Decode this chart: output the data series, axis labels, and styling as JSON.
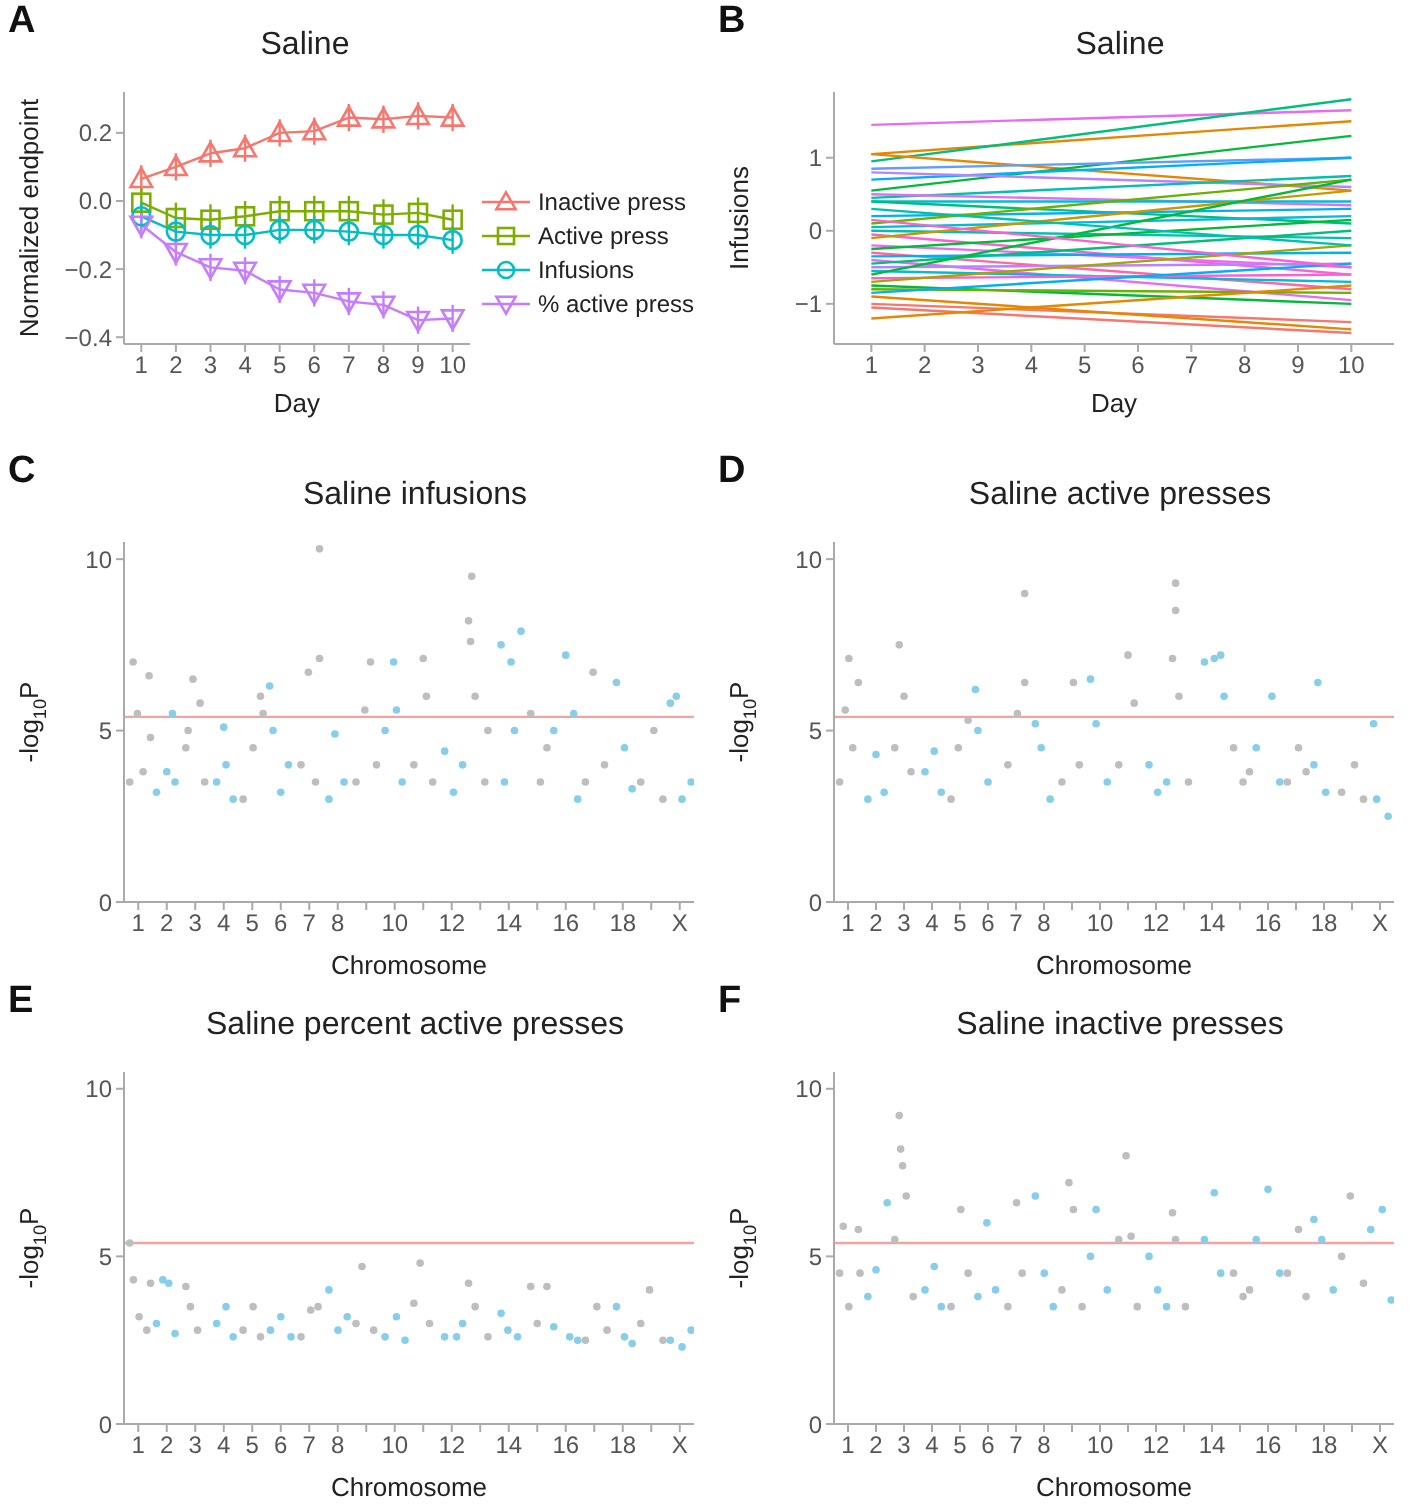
{
  "chart_data": [
    {
      "type": "line",
      "title": "Saline",
      "xlabel": "Day",
      "ylabel": "Normalized endpoint",
      "annotations": [
        "A"
      ],
      "legend": "right",
      "x": [
        1,
        2,
        3,
        4,
        5,
        6,
        7,
        8,
        9,
        10
      ],
      "xlim": [
        0.5,
        10.5
      ],
      "xticks": [
        1,
        2,
        3,
        4,
        5,
        6,
        7,
        8,
        9,
        10
      ],
      "ylim": [
        -0.42,
        0.32
      ],
      "yticks": [
        {
          "value": -0.4,
          "label": "−0.4"
        },
        {
          "value": -0.2,
          "label": "−0.2"
        },
        {
          "value": 0,
          "label": "0.0"
        },
        {
          "value": 0.2,
          "label": "0.2"
        }
      ],
      "series": [
        {
          "name": "Inactive press",
          "color": "#f8766d",
          "marker": "triangle",
          "values": [
            0.065,
            0.1,
            0.14,
            0.155,
            0.2,
            0.205,
            0.245,
            0.24,
            0.25,
            0.245
          ],
          "errors": [
            0.04,
            0.04,
            0.04,
            0.04,
            0.04,
            0.04,
            0.04,
            0.04,
            0.04,
            0.04
          ]
        },
        {
          "name": "Active press",
          "color": "#7cae00",
          "marker": "square",
          "values": [
            -0.005,
            -0.05,
            -0.055,
            -0.045,
            -0.03,
            -0.03,
            -0.03,
            -0.04,
            -0.035,
            -0.055
          ],
          "errors": [
            0.045,
            0.045,
            0.045,
            0.045,
            0.045,
            0.045,
            0.045,
            0.045,
            0.045,
            0.045
          ]
        },
        {
          "name": "Infusions",
          "color": "#00bfc4",
          "marker": "circle",
          "values": [
            -0.045,
            -0.09,
            -0.1,
            -0.1,
            -0.085,
            -0.085,
            -0.09,
            -0.1,
            -0.1,
            -0.115
          ],
          "errors": [
            0.04,
            0.04,
            0.04,
            0.04,
            0.04,
            0.04,
            0.04,
            0.04,
            0.04,
            0.04
          ]
        },
        {
          "name": "% active press",
          "color": "#c77cff",
          "marker": "triangle-down",
          "values": [
            -0.07,
            -0.15,
            -0.195,
            -0.205,
            -0.26,
            -0.27,
            -0.295,
            -0.305,
            -0.35,
            -0.345
          ],
          "errors": [
            0.04,
            0.04,
            0.04,
            0.04,
            0.04,
            0.04,
            0.04,
            0.04,
            0.04,
            0.04
          ]
        }
      ]
    },
    {
      "type": "line",
      "title": "Saline",
      "xlabel": "Day",
      "ylabel": "Infusions",
      "annotations": [
        "B"
      ],
      "marker": "none",
      "xlim": [
        0.3,
        10.8
      ],
      "xticks": [
        1,
        2,
        3,
        4,
        5,
        6,
        7,
        8,
        9,
        10
      ],
      "ylim": [
        -1.55,
        1.9
      ],
      "yticks": [
        {
          "value": -1,
          "label": "−1"
        },
        0,
        1
      ],
      "series": [
        {
          "color": "#e76bf3",
          "x": [
            1,
            10
          ],
          "values": [
            1.45,
            1.65
          ]
        },
        {
          "color": "#e58700",
          "x": [
            1,
            10
          ],
          "values": [
            1.05,
            1.5
          ]
        },
        {
          "color": "#00bf7d",
          "x": [
            1,
            10
          ],
          "values": [
            0.95,
            1.8
          ]
        },
        {
          "color": "#e58700",
          "x": [
            1,
            10
          ],
          "values": [
            1.05,
            0.55
          ]
        },
        {
          "color": "#00ba38",
          "x": [
            1,
            10
          ],
          "values": [
            0.55,
            1.3
          ]
        },
        {
          "color": "#619cff",
          "x": [
            1,
            10
          ],
          "values": [
            0.85,
            1.0
          ]
        },
        {
          "color": "#00b0f6",
          "x": [
            1,
            10
          ],
          "values": [
            0.7,
            1.0
          ]
        },
        {
          "color": "#b983ff",
          "x": [
            1,
            10
          ],
          "values": [
            0.8,
            0.6
          ]
        },
        {
          "color": "#00c0af",
          "x": [
            1,
            10
          ],
          "values": [
            0.45,
            0.75
          ]
        },
        {
          "color": "#e76bf3",
          "x": [
            1,
            10
          ],
          "values": [
            0.5,
            0.35
          ]
        },
        {
          "color": "#00bcd8",
          "x": [
            1,
            10
          ],
          "values": [
            0.4,
            0.4
          ]
        },
        {
          "color": "#00bf7d",
          "x": [
            1,
            10
          ],
          "values": [
            0.4,
            0.1
          ]
        },
        {
          "color": "#00b0f6",
          "x": [
            1,
            10
          ],
          "values": [
            0.2,
            0.3
          ]
        },
        {
          "color": "#6bb100",
          "x": [
            1,
            10
          ],
          "values": [
            0.1,
            0.7
          ]
        },
        {
          "color": "#00bcd8",
          "x": [
            1,
            10
          ],
          "values": [
            0.05,
            0.2
          ]
        },
        {
          "color": "#00c0af",
          "x": [
            1,
            10
          ],
          "values": [
            0.0,
            -0.1
          ]
        },
        {
          "color": "#fd61d1",
          "x": [
            1,
            10
          ],
          "values": [
            -0.05,
            -0.6
          ]
        },
        {
          "color": "#c99800",
          "x": [
            1,
            10
          ],
          "values": [
            -0.1,
            0.55
          ]
        },
        {
          "color": "#e76bf3",
          "x": [
            1,
            10
          ],
          "values": [
            -0.2,
            -0.5
          ]
        },
        {
          "color": "#00ba38",
          "x": [
            1,
            10
          ],
          "values": [
            -0.25,
            0.15
          ]
        },
        {
          "color": "#ff67a4",
          "x": [
            1,
            10
          ],
          "values": [
            -0.3,
            -0.8
          ]
        },
        {
          "color": "#00b0f6",
          "x": [
            1,
            10
          ],
          "values": [
            -0.35,
            -0.3
          ]
        },
        {
          "color": "#e76bf3",
          "x": [
            1,
            10
          ],
          "values": [
            -0.4,
            -0.95
          ]
        },
        {
          "color": "#00bf7d",
          "x": [
            1,
            10
          ],
          "values": [
            -0.45,
            0.0
          ]
        },
        {
          "color": "#b983ff",
          "x": [
            1,
            10
          ],
          "values": [
            -0.5,
            -0.45
          ]
        },
        {
          "color": "#00bcd8",
          "x": [
            1,
            10
          ],
          "values": [
            -0.55,
            -0.7
          ]
        },
        {
          "color": "#00ba38",
          "x": [
            1,
            10
          ],
          "values": [
            -0.6,
            0.7
          ]
        },
        {
          "color": "#fd61d1",
          "x": [
            1,
            10
          ],
          "values": [
            -0.65,
            -0.6
          ]
        },
        {
          "color": "#a3a500",
          "x": [
            1,
            10
          ],
          "values": [
            -0.7,
            -0.2
          ]
        },
        {
          "color": "#00ba38",
          "x": [
            1,
            10
          ],
          "values": [
            -0.75,
            -1.0
          ]
        },
        {
          "color": "#6bb100",
          "x": [
            1,
            10
          ],
          "values": [
            -0.8,
            -0.85
          ]
        },
        {
          "color": "#00b0f6",
          "x": [
            1,
            10
          ],
          "values": [
            -0.85,
            -0.45
          ]
        },
        {
          "color": "#f8766d",
          "x": [
            1,
            10
          ],
          "values": [
            -1.0,
            -1.25
          ]
        },
        {
          "color": "#f8766d",
          "x": [
            1,
            10
          ],
          "values": [
            -1.05,
            -1.4
          ]
        },
        {
          "color": "#e58700",
          "x": [
            1,
            10
          ],
          "values": [
            -1.2,
            -0.75
          ]
        },
        {
          "color": "#e58700",
          "x": [
            1,
            10
          ],
          "values": [
            -0.9,
            -1.35
          ]
        },
        {
          "color": "#fd61d1",
          "x": [
            1,
            10
          ],
          "values": [
            0.15,
            -0.5
          ]
        },
        {
          "color": "#00c0af",
          "x": [
            1,
            10
          ],
          "values": [
            0.3,
            -0.2
          ]
        }
      ]
    },
    {
      "type": "scatter",
      "title": "Saline infusions",
      "xlabel": "Chromosome",
      "ylabel": "-log$_{10}$P",
      "annotations": [
        "C"
      ],
      "marker": "circle",
      "xlim": [
        0.5,
        20.5
      ],
      "xticks": [
        1,
        2,
        3,
        4,
        5,
        6,
        7,
        8,
        {
          "value": 9,
          "label": null
        },
        10,
        {
          "value": 11,
          "label": null
        },
        12,
        {
          "value": 13,
          "label": null
        },
        14,
        {
          "value": 15,
          "label": null
        },
        16,
        {
          "value": 17,
          "label": null
        },
        18,
        {
          "value": 19,
          "label": null
        },
        {
          "value": 20,
          "label": "X"
        }
      ],
      "ylim": [
        0,
        10.5
      ],
      "yticks": [
        0,
        5,
        10
      ],
      "ref_lines": [
        {
          "axis": "y",
          "value": 5.4,
          "color": "#f4a3a3"
        }
      ],
      "series": [
        {
          "color": "#bebebe",
          "x": [
            0.7,
            0.82,
            0.97,
            1.17,
            1.38,
            1.43,
            2.67,
            2.75,
            2.92,
            3.17,
            3.33,
            4.68,
            5.03,
            5.29,
            5.38,
            6.71,
            6.97,
            7.22,
            7.36,
            7.36,
            8.64,
            8.95,
            9.15,
            9.36,
            10.67,
            11.0,
            11.11,
            11.33,
            12.59,
            12.66,
            12.7,
            12.82,
            13.16,
            13.27,
            14.77,
            15.11,
            15.34,
            16.69,
            16.96,
            17.36,
            18.63,
            19.09,
            19.41
          ],
          "values": [
            3.5,
            7.0,
            5.5,
            3.8,
            6.6,
            4.8,
            4.5,
            5.0,
            6.5,
            5.8,
            3.5,
            3.0,
            4.5,
            6.0,
            5.5,
            4.0,
            6.7,
            3.5,
            10.3,
            7.1,
            3.5,
            5.6,
            7.0,
            4.0,
            4.0,
            7.1,
            6.0,
            3.5,
            8.2,
            7.6,
            9.5,
            6.0,
            3.5,
            5.0,
            5.5,
            3.5,
            4.5,
            3.5,
            6.7,
            4.0,
            3.5,
            5.0,
            3.0
          ]
        },
        {
          "color": "#87ceeb",
          "x": [
            1.64,
            2.0,
            2.2,
            2.29,
            3.75,
            4.0,
            4.08,
            4.33,
            5.61,
            5.73,
            6.0,
            6.27,
            7.69,
            7.9,
            8.22,
            9.66,
            9.96,
            10.06,
            10.26,
            11.75,
            12.06,
            12.38,
            13.73,
            13.85,
            14.08,
            14.2,
            14.43,
            15.58,
            16.0,
            16.28,
            16.42,
            17.78,
            18.06,
            18.33,
            19.67,
            19.88,
            20.08,
            20.4
          ],
          "values": [
            3.2,
            3.8,
            5.5,
            3.5,
            3.5,
            5.1,
            4.0,
            3.0,
            6.3,
            5.0,
            3.2,
            4.0,
            3.0,
            4.9,
            3.5,
            5.0,
            7.0,
            5.6,
            3.5,
            4.4,
            3.2,
            4.0,
            7.5,
            3.5,
            7.0,
            5.0,
            7.9,
            5.0,
            7.2,
            5.5,
            3.0,
            6.4,
            4.5,
            3.3,
            5.8,
            6.0,
            3.0,
            3.5
          ]
        }
      ]
    },
    {
      "type": "scatter",
      "title": "Saline active presses",
      "xlabel": "Chromosome",
      "ylabel": "-log$_{10}$P",
      "annotations": [
        "D"
      ],
      "marker": "circle",
      "xlim": [
        0.5,
        20.5
      ],
      "xticks": [
        1,
        2,
        3,
        4,
        5,
        6,
        7,
        8,
        {
          "value": 9,
          "label": null
        },
        10,
        {
          "value": 11,
          "label": null
        },
        12,
        {
          "value": 13,
          "label": null
        },
        14,
        {
          "value": 15,
          "label": null
        },
        16,
        {
          "value": 17,
          "label": null
        },
        18,
        {
          "value": 19,
          "label": null
        },
        {
          "value": 20,
          "label": "X"
        }
      ],
      "ylim": [
        0,
        10.5
      ],
      "yticks": [
        0,
        5,
        10
      ],
      "ref_lines": [
        {
          "axis": "y",
          "value": 5.4,
          "color": "#f4a3a3"
        }
      ],
      "series": [
        {
          "color": "#bebebe",
          "x": [
            0.7,
            0.9,
            1.03,
            1.17,
            1.37,
            2.67,
            2.83,
            3.0,
            3.25,
            4.68,
            4.94,
            5.29,
            6.71,
            7.05,
            7.31,
            7.31,
            8.64,
            9.05,
            9.26,
            10.67,
            11.0,
            11.22,
            12.59,
            12.7,
            12.7,
            12.82,
            13.16,
            14.77,
            15.11,
            15.34,
            16.69,
            17.09,
            17.36,
            18.63,
            19.09,
            19.41
          ],
          "values": [
            3.5,
            5.6,
            7.1,
            4.5,
            6.4,
            4.5,
            7.5,
            6.0,
            3.8,
            3.0,
            4.5,
            5.3,
            4.0,
            5.5,
            9.0,
            6.4,
            3.5,
            6.4,
            4.0,
            4.0,
            7.2,
            5.8,
            7.1,
            8.5,
            9.3,
            6.0,
            3.5,
            4.5,
            3.5,
            3.8,
            3.5,
            4.5,
            3.8,
            3.2,
            4.0,
            3.0
          ]
        },
        {
          "color": "#87ceeb",
          "x": [
            1.71,
            2.0,
            2.29,
            3.75,
            4.08,
            4.33,
            5.55,
            5.64,
            6.0,
            7.69,
            7.9,
            8.22,
            9.66,
            9.86,
            10.26,
            11.75,
            12.06,
            12.38,
            13.73,
            14.08,
            14.31,
            14.43,
            15.58,
            16.14,
            16.42,
            17.64,
            17.78,
            18.06,
            19.77,
            19.88,
            20.29
          ],
          "values": [
            3.0,
            4.3,
            3.2,
            3.8,
            4.4,
            3.2,
            6.2,
            5.0,
            3.5,
            5.2,
            4.5,
            3.0,
            6.5,
            5.2,
            3.5,
            4.0,
            3.2,
            3.5,
            7.0,
            7.1,
            7.2,
            6.0,
            4.5,
            6.0,
            3.5,
            4.0,
            6.4,
            3.2,
            5.2,
            3.0,
            2.5
          ]
        }
      ]
    },
    {
      "type": "scatter",
      "title": "Saline percent active presses",
      "xlabel": "Chromosome",
      "ylabel": "-log$_{10}$P",
      "annotations": [
        "E"
      ],
      "marker": "circle",
      "xlim": [
        0.5,
        20.5
      ],
      "xticks": [
        1,
        2,
        3,
        4,
        5,
        6,
        7,
        8,
        {
          "value": 9,
          "label": null
        },
        10,
        {
          "value": 11,
          "label": null
        },
        12,
        {
          "value": 13,
          "label": null
        },
        14,
        {
          "value": 15,
          "label": null
        },
        16,
        {
          "value": 17,
          "label": null
        },
        18,
        {
          "value": 19,
          "label": null
        },
        {
          "value": 20,
          "label": "X"
        }
      ],
      "ylim": [
        0,
        10.5
      ],
      "yticks": [
        0,
        5,
        10
      ],
      "ref_lines": [
        {
          "axis": "y",
          "value": 5.4,
          "color": "#f4a3a3"
        }
      ],
      "series": [
        {
          "color": "#bebebe",
          "x": [
            0.7,
            0.83,
            1.03,
            1.3,
            1.43,
            2.67,
            2.83,
            3.08,
            4.68,
            5.03,
            5.29,
            6.71,
            7.05,
            7.31,
            8.64,
            8.85,
            9.26,
            10.67,
            10.89,
            11.22,
            12.59,
            12.82,
            13.27,
            14.77,
            15.0,
            15.34,
            16.69,
            17.09,
            17.45,
            18.63,
            18.94,
            19.41
          ],
          "values": [
            5.4,
            4.3,
            3.2,
            2.8,
            4.2,
            4.1,
            3.5,
            2.8,
            2.8,
            3.5,
            2.6,
            2.6,
            3.4,
            3.5,
            3.0,
            4.7,
            2.8,
            3.6,
            4.8,
            3.0,
            4.2,
            3.5,
            2.6,
            4.1,
            3.0,
            4.1,
            2.5,
            3.5,
            2.8,
            3.0,
            4.0,
            2.5
          ]
        },
        {
          "color": "#87ceeb",
          "x": [
            1.64,
            1.86,
            2.07,
            2.29,
            3.75,
            4.08,
            4.33,
            5.64,
            6.0,
            6.36,
            7.69,
            8.01,
            8.33,
            9.66,
            10.06,
            10.36,
            11.75,
            12.17,
            12.38,
            13.73,
            13.97,
            14.31,
            15.58,
            16.14,
            16.42,
            17.78,
            18.06,
            18.33,
            19.67,
            20.08,
            20.4
          ],
          "values": [
            3.0,
            4.3,
            4.2,
            2.7,
            3.0,
            3.5,
            2.6,
            2.8,
            3.2,
            2.6,
            4.0,
            2.8,
            3.2,
            2.6,
            3.2,
            2.5,
            2.6,
            2.6,
            3.0,
            3.3,
            2.8,
            2.6,
            2.9,
            2.6,
            2.5,
            3.5,
            2.6,
            2.4,
            2.5,
            2.3,
            2.8
          ]
        }
      ]
    },
    {
      "type": "scatter",
      "title": "Saline inactive presses",
      "xlabel": "Chromosome",
      "ylabel": "-log$_{10}$P",
      "annotations": [
        "F"
      ],
      "marker": "circle",
      "xlim": [
        0.5,
        20.5
      ],
      "xticks": [
        1,
        2,
        3,
        4,
        5,
        6,
        7,
        8,
        {
          "value": 9,
          "label": null
        },
        10,
        {
          "value": 11,
          "label": null
        },
        12,
        {
          "value": 13,
          "label": null
        },
        14,
        {
          "value": 15,
          "label": null
        },
        16,
        {
          "value": 17,
          "label": null
        },
        18,
        {
          "value": 19,
          "label": null
        },
        {
          "value": 20,
          "label": "X"
        }
      ],
      "ylim": [
        0,
        10.5
      ],
      "yticks": [
        0,
        5,
        10
      ],
      "ref_lines": [
        {
          "axis": "y",
          "value": 5.4,
          "color": "#f4a3a3"
        }
      ],
      "series": [
        {
          "color": "#bebebe",
          "x": [
            0.7,
            0.83,
            1.03,
            1.37,
            1.43,
            2.67,
            2.83,
            2.88,
            2.95,
            3.08,
            3.33,
            4.68,
            5.03,
            5.29,
            6.71,
            7.02,
            7.22,
            8.64,
            8.89,
            9.05,
            9.36,
            10.67,
            10.93,
            11.11,
            11.33,
            12.59,
            12.7,
            13.05,
            14.77,
            15.11,
            15.34,
            16.69,
            17.09,
            17.36,
            18.63,
            18.94,
            19.41
          ],
          "values": [
            4.5,
            5.9,
            3.5,
            5.8,
            4.5,
            5.5,
            9.2,
            8.2,
            7.7,
            6.8,
            3.8,
            3.5,
            6.4,
            4.5,
            3.5,
            6.6,
            4.5,
            4.0,
            7.2,
            6.4,
            3.5,
            5.5,
            8.0,
            5.6,
            3.5,
            6.3,
            5.5,
            3.5,
            4.5,
            3.8,
            4.0,
            4.5,
            5.8,
            3.8,
            5.0,
            6.8,
            4.2
          ]
        },
        {
          "color": "#87ceeb",
          "x": [
            1.71,
            2.0,
            2.4,
            3.75,
            4.08,
            4.33,
            5.64,
            5.96,
            6.27,
            7.69,
            8.01,
            8.33,
            9.66,
            9.86,
            10.26,
            11.75,
            12.06,
            12.38,
            13.73,
            14.08,
            14.31,
            15.58,
            16.0,
            16.42,
            17.64,
            17.92,
            18.33,
            19.67,
            20.08,
            20.4
          ],
          "values": [
            3.8,
            4.6,
            6.6,
            4.0,
            4.7,
            3.5,
            3.8,
            6.0,
            4.0,
            6.8,
            4.5,
            3.5,
            5.0,
            6.4,
            4.0,
            5.0,
            4.0,
            3.5,
            5.5,
            6.9,
            4.5,
            5.5,
            7.0,
            4.5,
            6.1,
            5.5,
            4.0,
            5.8,
            6.4,
            3.7
          ]
        }
      ]
    }
  ]
}
